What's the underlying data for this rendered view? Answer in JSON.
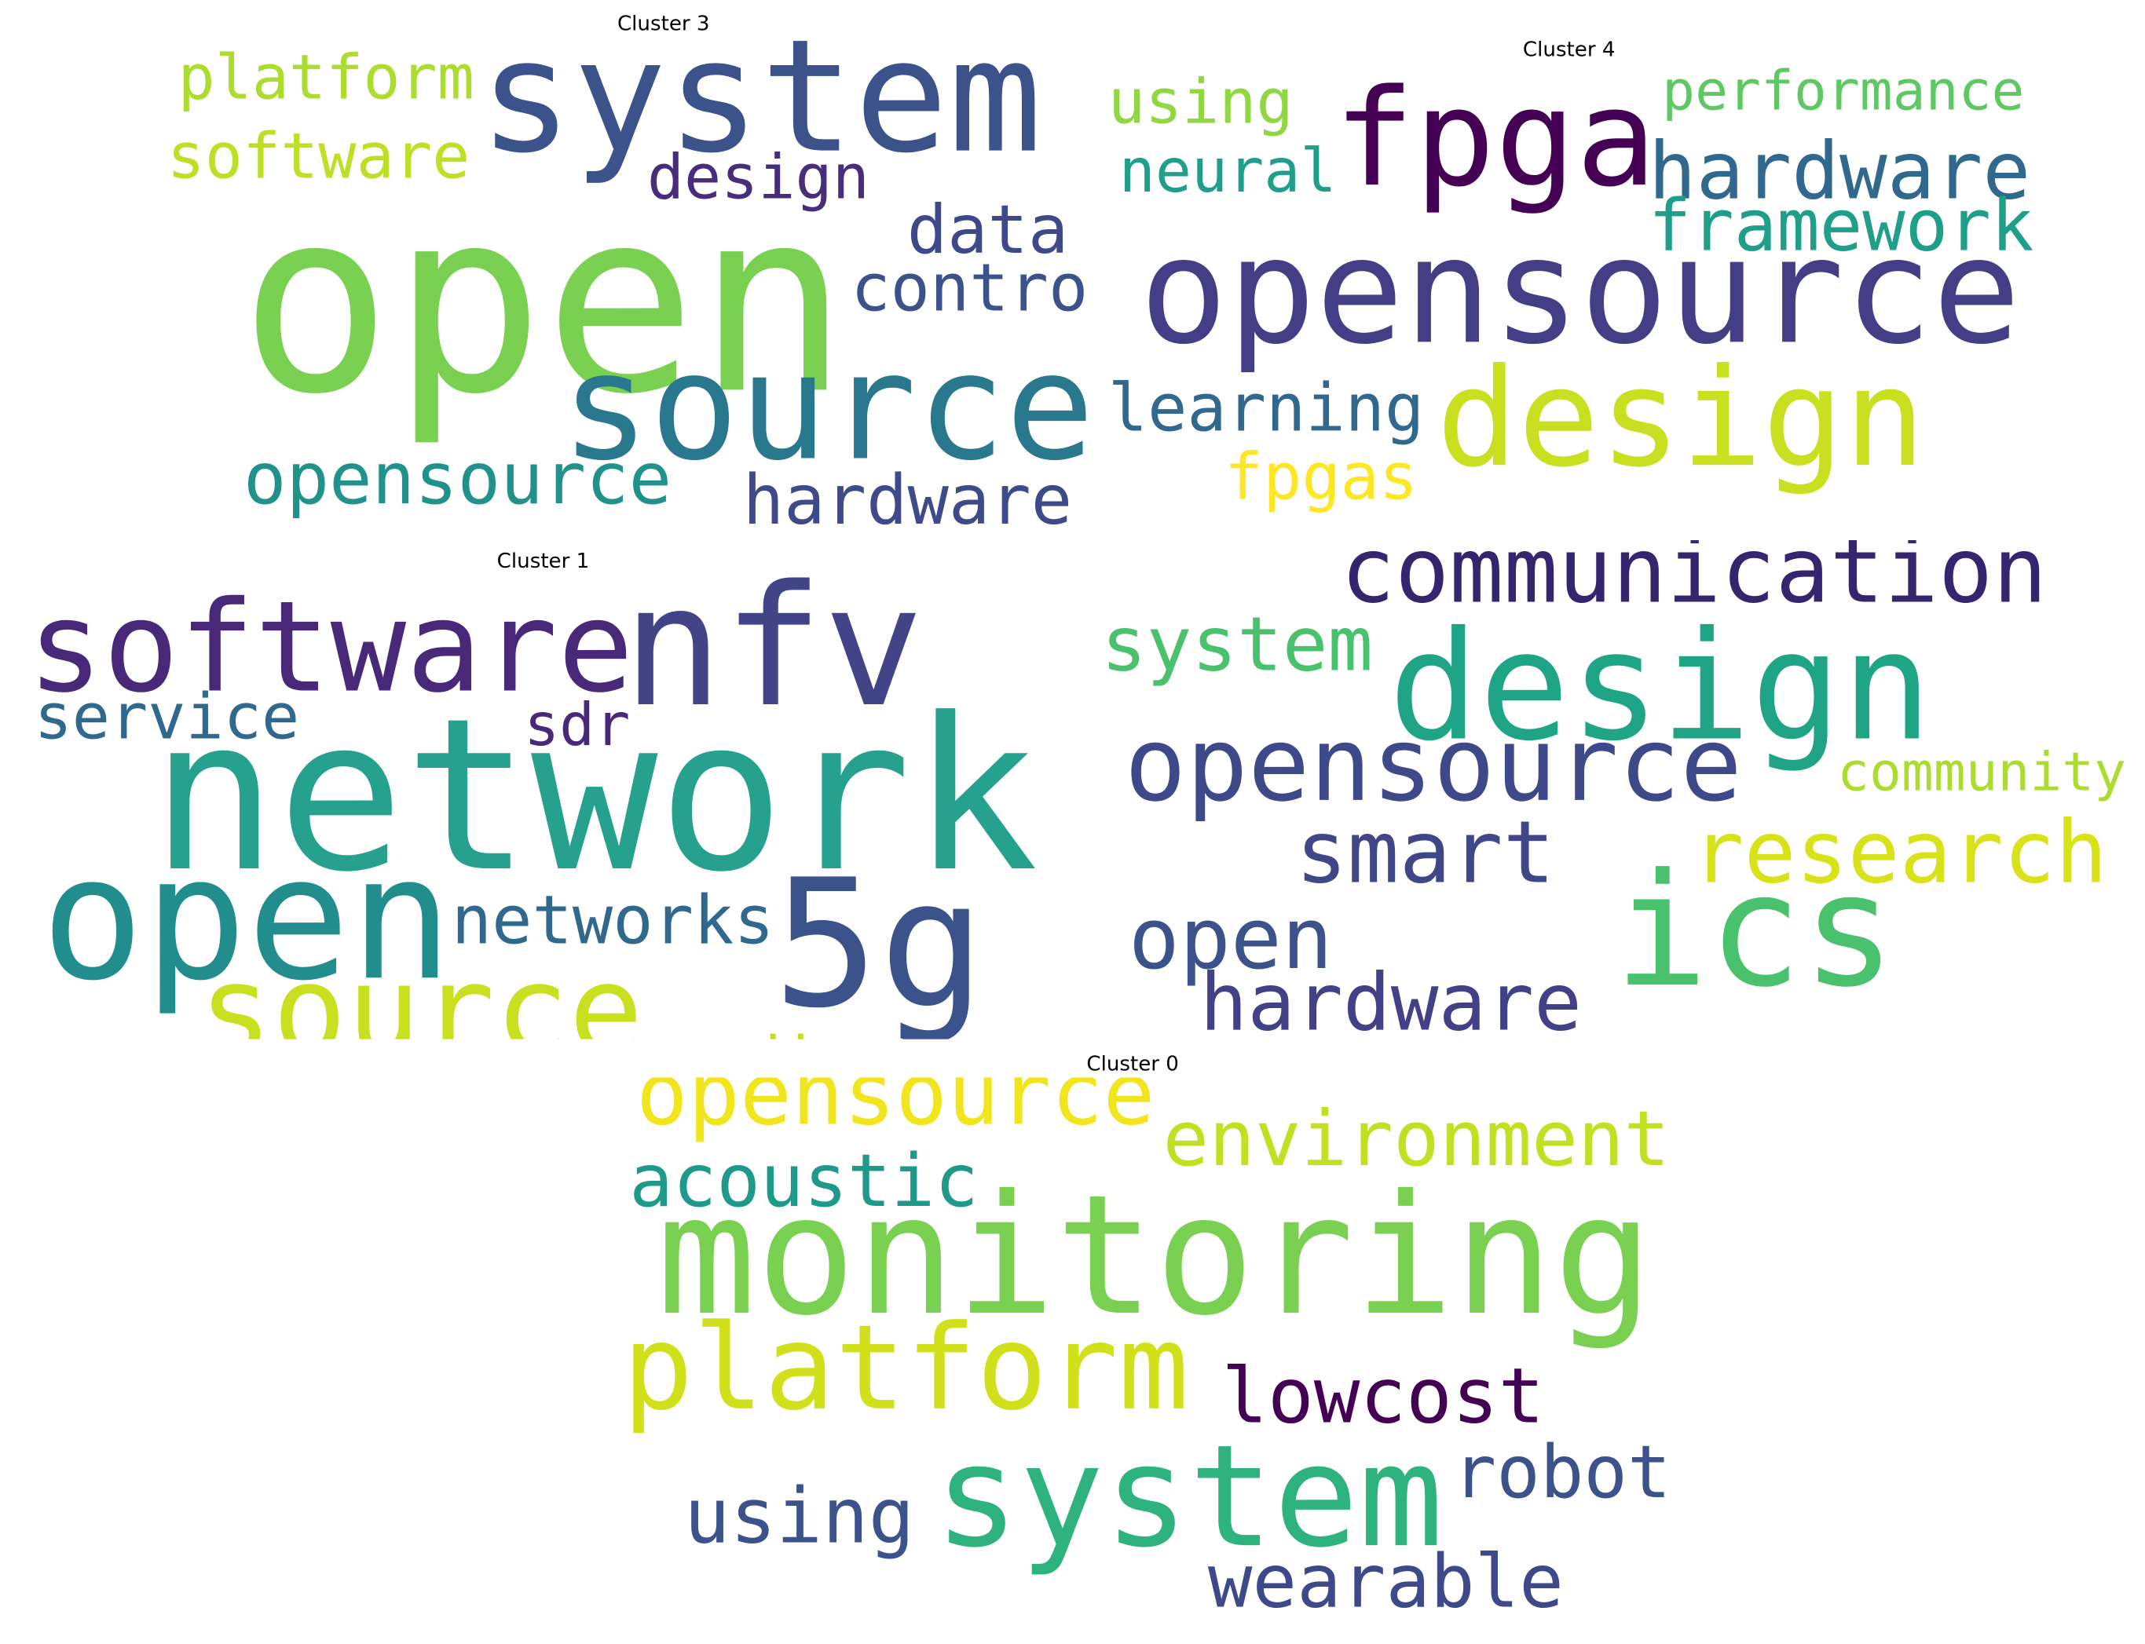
{
  "clusters": [
    {
      "title": "Cluster 3",
      "words": [
        {
          "text": "system",
          "color": "#3b528b"
        },
        {
          "text": "open",
          "color": "#7ad151"
        },
        {
          "text": "source",
          "color": "#2a788e"
        },
        {
          "text": "platform",
          "color": "#addc30"
        },
        {
          "text": "software",
          "color": "#bddf26"
        },
        {
          "text": "design",
          "color": "#472d7b"
        },
        {
          "text": "data",
          "color": "#3e4989"
        },
        {
          "text": "control",
          "color": "#3b528b"
        },
        {
          "text": "opensource",
          "color": "#21918c"
        },
        {
          "text": "hardware",
          "color": "#3e4a89"
        }
      ]
    },
    {
      "title": "Cluster 4",
      "words": [
        {
          "text": "fpga",
          "color": "#440154"
        },
        {
          "text": "opensource",
          "color": "#433e85"
        },
        {
          "text": "design",
          "color": "#c8e020"
        },
        {
          "text": "using",
          "color": "#90d743"
        },
        {
          "text": "performance",
          "color": "#5ec962"
        },
        {
          "text": "neural",
          "color": "#1f9e89"
        },
        {
          "text": "hardware",
          "color": "#31688e"
        },
        {
          "text": "framework",
          "color": "#1f9e89"
        },
        {
          "text": "learning",
          "color": "#31688e"
        },
        {
          "text": "fpgas",
          "color": "#fde725"
        }
      ]
    },
    {
      "title": "Cluster 1",
      "words": [
        {
          "text": "software",
          "color": "#482878"
        },
        {
          "text": "nfv",
          "color": "#414487"
        },
        {
          "text": "network",
          "color": "#25a18e"
        },
        {
          "text": "open",
          "color": "#228d8d"
        },
        {
          "text": "5g",
          "color": "#3b528b"
        },
        {
          "text": "source",
          "color": "#c8e020"
        },
        {
          "text": "service",
          "color": "#31688e"
        },
        {
          "text": "sdr",
          "color": "#482878"
        },
        {
          "text": "networks",
          "color": "#31688e"
        },
        {
          "text": "radio",
          "color": "#c0df25"
        }
      ]
    },
    {
      "words": [
        {
          "text": "communication",
          "color": "#35256f"
        },
        {
          "text": "system",
          "color": "#4ac16d"
        },
        {
          "text": "design",
          "color": "#20a486"
        },
        {
          "text": "opensource",
          "color": "#3e4989"
        },
        {
          "text": "community",
          "color": "#addc30"
        },
        {
          "text": "smart",
          "color": "#3f4788"
        },
        {
          "text": "research",
          "color": "#d8e219"
        },
        {
          "text": "ics",
          "color": "#4ac16d"
        },
        {
          "text": "open",
          "color": "#3b528b"
        },
        {
          "text": "hardware",
          "color": "#424086"
        }
      ]
    },
    {
      "title": "Cluster 0",
      "words": [
        {
          "text": "opensource",
          "color": "#f1e51d"
        },
        {
          "text": "environment",
          "color": "#c2df23"
        },
        {
          "text": "acoustic",
          "color": "#1f9a8a"
        },
        {
          "text": "monitoring",
          "color": "#7ad151"
        },
        {
          "text": "platform",
          "color": "#d0e11c"
        },
        {
          "text": "lowcost",
          "color": "#440154"
        },
        {
          "text": "robot",
          "color": "#3b528b"
        },
        {
          "text": "system",
          "color": "#2eb37c"
        },
        {
          "text": "using",
          "color": "#3b528b"
        },
        {
          "text": "wearable",
          "color": "#3e4989"
        }
      ]
    }
  ]
}
